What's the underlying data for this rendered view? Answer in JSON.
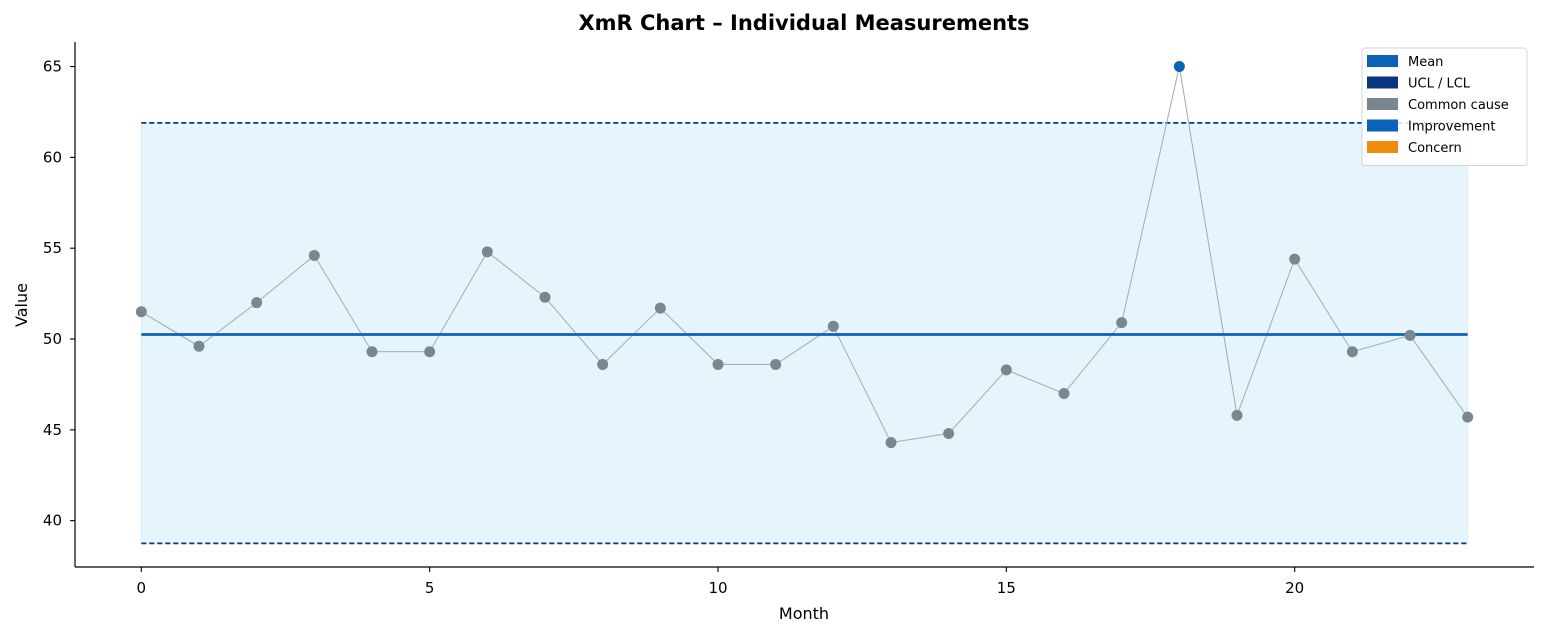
{
  "chart_data": {
    "type": "line",
    "title": "XmR Chart – Individual Measurements",
    "xlabel": "Month",
    "ylabel": "Value",
    "xlim": [
      -1.15,
      24.15
    ],
    "ylim": [
      37.45,
      66.35
    ],
    "xticks": [
      0,
      5,
      10,
      15,
      20
    ],
    "yticks": [
      40,
      45,
      50,
      55,
      60,
      65
    ],
    "grid": false,
    "legend_position": "top-right",
    "mean": 50.25,
    "ucl": 61.9,
    "lcl": 38.75,
    "band_x_range": [
      0,
      23
    ],
    "series": [
      {
        "name": "Values",
        "x": [
          0,
          1,
          2,
          3,
          4,
          5,
          6,
          7,
          8,
          9,
          10,
          11,
          12,
          13,
          14,
          15,
          16,
          17,
          18,
          19,
          20,
          21,
          22,
          23
        ],
        "values": [
          51.5,
          49.6,
          52.0,
          54.6,
          49.3,
          49.3,
          54.8,
          52.3,
          48.6,
          51.7,
          48.6,
          48.6,
          50.7,
          44.3,
          44.8,
          48.3,
          47.0,
          50.9,
          65.0,
          45.8,
          54.4,
          49.3,
          50.2,
          45.7
        ],
        "classes": [
          "common",
          "common",
          "common",
          "common",
          "common",
          "common",
          "common",
          "common",
          "common",
          "common",
          "common",
          "common",
          "common",
          "common",
          "common",
          "common",
          "common",
          "common",
          "improvement",
          "common",
          "common",
          "common",
          "common",
          "common"
        ]
      }
    ],
    "legend": [
      {
        "label": "Mean",
        "color": "#0b62b8"
      },
      {
        "label": "UCL / LCL",
        "color": "#0a3580"
      },
      {
        "label": "Common cause",
        "color": "#7a8792"
      },
      {
        "label": "Improvement",
        "color": "#0b62b8"
      },
      {
        "label": "Concern",
        "color": "#ef8c0b"
      }
    ],
    "colors": {
      "mean": "#0b62b8",
      "limits": "#0a3580",
      "common": "#7a8792",
      "improvement": "#0b62b8",
      "concern": "#ef8c0b",
      "connector": "#a4b2bc",
      "band": "#e6f5fb"
    }
  }
}
